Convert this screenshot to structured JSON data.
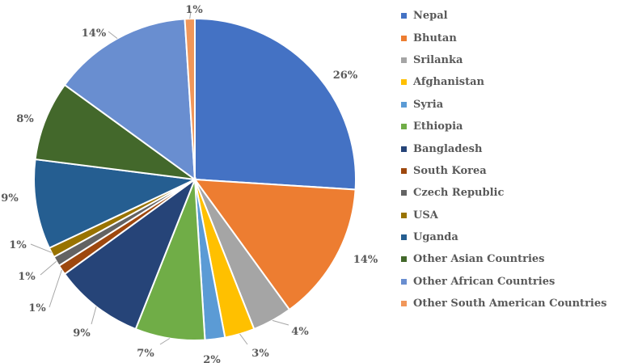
{
  "chart_data": {
    "type": "pie",
    "title": "",
    "slices": [
      {
        "label": "Nepal",
        "value": 26,
        "text": "26%",
        "color": "#4472C4"
      },
      {
        "label": "Bhutan",
        "value": 14,
        "text": "14%",
        "color": "#ED7D31"
      },
      {
        "label": "Srilanka",
        "value": 4,
        "text": "4%",
        "color": "#A5A5A5"
      },
      {
        "label": "Afghanistan",
        "value": 3,
        "text": "3%",
        "color": "#FFC000"
      },
      {
        "label": "Syria",
        "value": 2,
        "text": "2%",
        "color": "#5B9BD5"
      },
      {
        "label": "Ethiopia",
        "value": 7,
        "text": "7%",
        "color": "#70AD47"
      },
      {
        "label": "Bangladesh",
        "value": 9,
        "text": "9%",
        "color": "#264478"
      },
      {
        "label": "South Korea",
        "value": 1,
        "text": "1%",
        "color": "#9E480E"
      },
      {
        "label": "Czech Republic",
        "value": 1,
        "text": "1%",
        "color": "#636363"
      },
      {
        "label": "USA",
        "value": 1,
        "text": "1%",
        "color": "#997300"
      },
      {
        "label": "Uganda",
        "value": 9,
        "text": "9%",
        "color": "#255E91"
      },
      {
        "label": "Other Asian Countries",
        "value": 8,
        "text": "8%",
        "color": "#43682B"
      },
      {
        "label": "Other African Countries",
        "value": 14,
        "text": "14%",
        "color": "#698ED0"
      },
      {
        "label": "Other South American Countries",
        "value": 1,
        "text": "1%",
        "color": "#F1975A"
      }
    ],
    "legend_position": "right",
    "start_angle": "12 o'clock, clockwise"
  }
}
